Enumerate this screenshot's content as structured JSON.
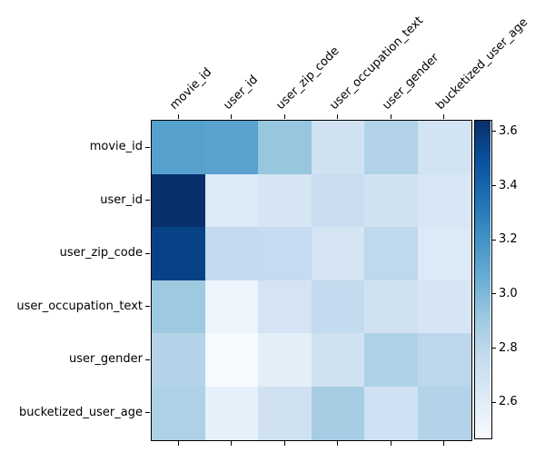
{
  "figure": {
    "background": "#ffffff",
    "text_color": "#000000"
  },
  "chart_data": {
    "type": "heatmap",
    "title": "",
    "xlabel": "",
    "ylabel": "",
    "grid": false,
    "categories": [
      "movie_id",
      "user_id",
      "user_zip_code",
      "user_occupation_text",
      "user_gender",
      "bucketized_user_age"
    ],
    "rows": [
      "movie_id",
      "user_id",
      "user_zip_code",
      "user_occupation_text",
      "user_gender",
      "bucketized_user_age"
    ],
    "values": [
      [
        3.13,
        3.12,
        2.93,
        2.7,
        2.84,
        2.69
      ],
      [
        3.64,
        2.63,
        2.67,
        2.74,
        2.7,
        2.65
      ],
      [
        3.56,
        2.77,
        2.76,
        2.67,
        2.79,
        2.63
      ],
      [
        2.91,
        2.53,
        2.68,
        2.77,
        2.7,
        2.67
      ],
      [
        2.83,
        2.48,
        2.59,
        2.7,
        2.85,
        2.8
      ],
      [
        2.85,
        2.57,
        2.7,
        2.88,
        2.71,
        2.83
      ]
    ],
    "vmin": 2.47,
    "vmax": 3.64,
    "colormap": {
      "name": "Blues",
      "stops": [
        {
          "t": 0.0,
          "color": "#f7fbff"
        },
        {
          "t": 0.125,
          "color": "#deebf7"
        },
        {
          "t": 0.25,
          "color": "#c6dbef"
        },
        {
          "t": 0.375,
          "color": "#9ecae1"
        },
        {
          "t": 0.5,
          "color": "#6baed6"
        },
        {
          "t": 0.625,
          "color": "#4292c6"
        },
        {
          "t": 0.75,
          "color": "#2171b5"
        },
        {
          "t": 0.875,
          "color": "#08519c"
        },
        {
          "t": 1.0,
          "color": "#08306b"
        }
      ]
    },
    "colorbar": {
      "position": "right",
      "tick_labels": [
        "2.6",
        "2.8",
        "3.0",
        "3.2",
        "3.4",
        "3.6"
      ],
      "tick_values": [
        2.6,
        2.8,
        3.0,
        3.2,
        3.4,
        3.6
      ]
    },
    "legend": null,
    "x_tick_rotation_deg": 45,
    "x_ticks_position": "top"
  }
}
